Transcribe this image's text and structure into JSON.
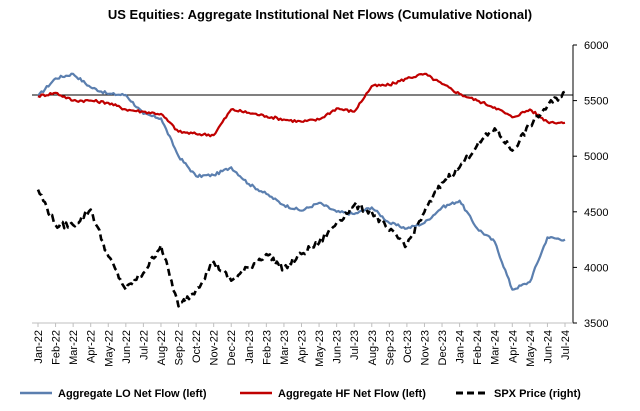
{
  "chart_data": {
    "type": "line",
    "title": "US Equities: Aggregate Institutional Net Flows (Cumulative Notional)",
    "x_ticks": [
      "Jan-22",
      "Feb-22",
      "Mar-22",
      "Apr-22",
      "May-22",
      "Jun-22",
      "Jul-22",
      "Aug-22",
      "Sep-22",
      "Oct-22",
      "Nov-22",
      "Dec-22",
      "Jan-23",
      "Feb-23",
      "Mar-23",
      "Apr-23",
      "May-23",
      "Jun-23",
      "Jul-23",
      "Aug-23",
      "Sep-23",
      "Oct-23",
      "Nov-23",
      "Dec-23",
      "Jan-24",
      "Feb-24",
      "Mar-24",
      "Apr-24",
      "May-24",
      "Jun-24",
      "Jul-24"
    ],
    "right_axis": {
      "ticks": [
        3500,
        4000,
        4500,
        5000,
        5500,
        6000
      ],
      "range": [
        3500,
        6000
      ]
    },
    "left_axis": {
      "ticks": [],
      "zero_line": true
    },
    "series": [
      {
        "name": "Aggregate LO Net Flow (left)",
        "color": "#5b7faf",
        "dash": "solid",
        "axis": "left",
        "values": [
          5540,
          5700,
          5740,
          5620,
          5560,
          5550,
          5380,
          5340,
          5000,
          4820,
          4830,
          4900,
          4750,
          4660,
          4560,
          4510,
          4580,
          4500,
          4480,
          4540,
          4400,
          4350,
          4400,
          4540,
          4600,
          4350,
          4230,
          3800,
          3870,
          4270,
          4250
        ]
      },
      {
        "name": "Aggregate HF Net Flow (left)",
        "color": "#c00000",
        "dash": "solid",
        "axis": "left",
        "values": [
          5540,
          5570,
          5500,
          5500,
          5480,
          5420,
          5400,
          5380,
          5220,
          5200,
          5190,
          5420,
          5390,
          5360,
          5330,
          5310,
          5330,
          5430,
          5400,
          5630,
          5640,
          5700,
          5740,
          5650,
          5560,
          5500,
          5440,
          5350,
          5420,
          5310,
          5300
        ]
      },
      {
        "name": "SPX Price (right)",
        "color": "#000000",
        "dash": "dashed",
        "axis": "right",
        "values": [
          4700,
          4380,
          4380,
          4520,
          4100,
          3800,
          3950,
          4200,
          3650,
          3800,
          4050,
          3880,
          4000,
          4120,
          3990,
          4120,
          4220,
          4400,
          4560,
          4500,
          4330,
          4200,
          4500,
          4760,
          4900,
          5100,
          5250,
          5050,
          5280,
          5450,
          5580
        ]
      }
    ]
  }
}
